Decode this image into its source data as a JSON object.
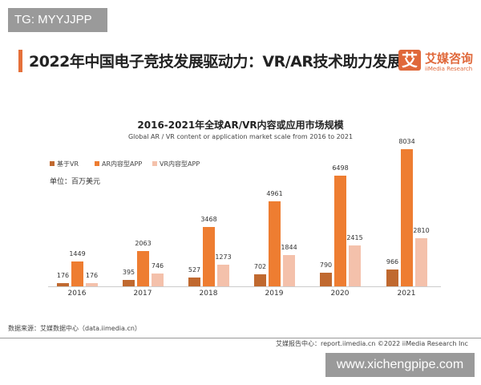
{
  "watermark_top": "TG: MYYJJPP",
  "header": {
    "title": "2022年中国电子竞技发展驱动力：VR/AR技术助力发展",
    "logo_char": "艾",
    "logo_cn": "艾媒咨询",
    "logo_en": "iiMedia Research"
  },
  "chart_data": {
    "type": "bar",
    "title": "2016-2021年全球AR/VR内容或应用市场规模",
    "subtitle": "Global AR / VR content or application market scale from 2016 to 2021",
    "unit": "单位：百万美元",
    "categories": [
      "2016",
      "2017",
      "2018",
      "2019",
      "2020",
      "2021"
    ],
    "series": [
      {
        "name": "基于VR",
        "color": "#c0692f",
        "values": [
          176,
          395,
          527,
          702,
          790,
          966
        ]
      },
      {
        "name": "AR内容型APP",
        "color": "#ee7d31",
        "values": [
          1449,
          2063,
          3468,
          4961,
          6498,
          8034
        ]
      },
      {
        "name": "VR内容型APP",
        "color": "#f4c1ab",
        "values": [
          176,
          746,
          1273,
          1844,
          2415,
          2810
        ]
      }
    ],
    "ylim": [
      0,
      8034
    ],
    "grid": false,
    "legend": "top-left"
  },
  "footer": {
    "source": "数据来源：艾媒数据中心（data.iimedia.cn）",
    "credit": "艾媒报告中心：report.iimedia.cn  ©2022  iiMedia Research Inc"
  },
  "watermark_bottom": "www.xichengpipe.com"
}
